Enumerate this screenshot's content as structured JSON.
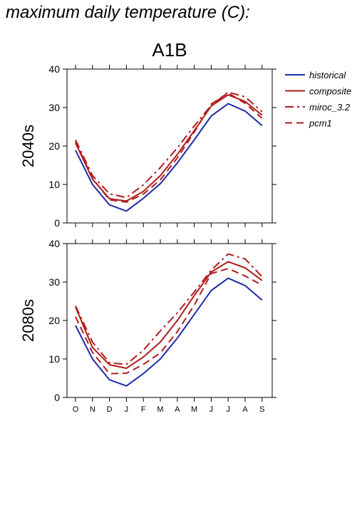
{
  "page": {
    "title": "maximum daily temperature (C):"
  },
  "figure": {
    "title": "A1B",
    "xlabels": [
      "O",
      "N",
      "D",
      "J",
      "F",
      "M",
      "A",
      "M",
      "J",
      "J",
      "A",
      "S"
    ],
    "yticks": [
      0,
      10,
      20,
      30,
      40
    ],
    "ylim": [
      0,
      40
    ]
  },
  "legend": [
    {
      "name": "historical",
      "color": "#1f2aa8",
      "dash": ""
    },
    {
      "name": "composite",
      "color": "#b01c1c",
      "dash": ""
    },
    {
      "name": "miroc_3.2",
      "color": "#b01c1c",
      "dash": "12,5,3,5"
    },
    {
      "name": "pcm1",
      "color": "#b01c1c",
      "dash": "10,6"
    }
  ],
  "chart_data": [
    {
      "type": "line",
      "ylabel": "2040s",
      "categories": [
        "O",
        "N",
        "D",
        "J",
        "F",
        "M",
        "A",
        "M",
        "J",
        "J",
        "A",
        "S"
      ],
      "ylim": [
        0,
        40
      ],
      "series": [
        {
          "name": "historical",
          "values": [
            18.9,
            10.0,
            4.7,
            3.1,
            6.4,
            10.2,
            15.6,
            21.6,
            27.8,
            31.0,
            29.1,
            25.3
          ]
        },
        {
          "name": "composite",
          "values": [
            20.8,
            11.4,
            6.3,
            5.7,
            8.2,
            12.3,
            17.8,
            24.0,
            30.4,
            33.3,
            31.6,
            28.0
          ]
        },
        {
          "name": "miroc_3.2",
          "values": [
            21.6,
            12.3,
            7.6,
            6.6,
            9.9,
            14.4,
            19.5,
            25.2,
            30.6,
            34.0,
            32.8,
            28.9
          ]
        },
        {
          "name": "pcm1",
          "values": [
            21.1,
            11.6,
            6.0,
            5.4,
            7.5,
            11.2,
            16.9,
            23.6,
            30.9,
            33.8,
            31.1,
            27.2
          ]
        }
      ]
    },
    {
      "type": "line",
      "ylabel": "2080s",
      "categories": [
        "O",
        "N",
        "D",
        "J",
        "F",
        "M",
        "A",
        "M",
        "J",
        "J",
        "A",
        "S"
      ],
      "ylim": [
        0,
        40
      ],
      "series": [
        {
          "name": "historical",
          "values": [
            18.7,
            10.0,
            4.6,
            3.0,
            6.2,
            10.0,
            15.4,
            21.6,
            27.8,
            31.0,
            29.1,
            25.3
          ]
        },
        {
          "name": "composite",
          "values": [
            23.5,
            13.0,
            8.5,
            7.6,
            10.5,
            14.4,
            20.0,
            26.5,
            32.6,
            35.3,
            33.7,
            30.4
          ]
        },
        {
          "name": "miroc_3.2",
          "values": [
            23.8,
            14.4,
            9.0,
            8.6,
            12.3,
            17.3,
            22.0,
            27.4,
            33.1,
            37.3,
            36.0,
            31.4
          ]
        },
        {
          "name": "pcm1",
          "values": [
            21.0,
            11.7,
            6.2,
            6.3,
            8.6,
            11.6,
            17.1,
            24.0,
            32.2,
            33.5,
            31.6,
            29.2
          ]
        }
      ]
    }
  ]
}
